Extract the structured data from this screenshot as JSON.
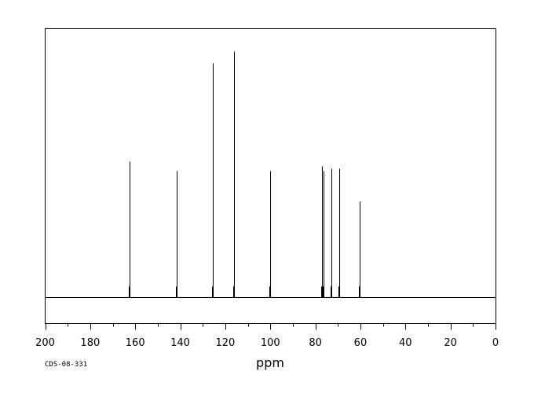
{
  "figure": {
    "sample_code": "CDS-08-331",
    "colors": {
      "background": "#ffffff",
      "line": "#000000"
    }
  },
  "chart_data": {
    "type": "line",
    "title": "",
    "xlabel": "ppm",
    "ylabel": "",
    "xlim": [
      200,
      0
    ],
    "x_reversed": true,
    "x_ticks": [
      200,
      180,
      160,
      140,
      120,
      100,
      80,
      60,
      40,
      20,
      0
    ],
    "x_minor_tick_step": 10,
    "ylim": [
      0,
      1.0
    ],
    "grid": false,
    "legend": "none",
    "peaks": [
      {
        "ppm": 162.5,
        "intensity": 0.58
      },
      {
        "ppm": 141.5,
        "intensity": 0.54
      },
      {
        "ppm": 125.7,
        "intensity": 1.0
      },
      {
        "ppm": 116.2,
        "intensity": 1.05
      },
      {
        "ppm": 100.0,
        "intensity": 0.54
      },
      {
        "ppm": 77.2,
        "intensity": 0.56
      },
      {
        "ppm": 76.2,
        "intensity": 0.54
      },
      {
        "ppm": 72.8,
        "intensity": 0.55
      },
      {
        "ppm": 69.3,
        "intensity": 0.55
      },
      {
        "ppm": 60.5,
        "intensity": 0.41
      }
    ]
  }
}
